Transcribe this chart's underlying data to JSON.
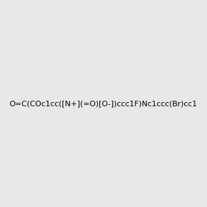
{
  "smiles": "O=C(COc1cc([N+](=O)[O-])ccc1F)Nc1ccc(Br)cc1",
  "image_size": 300,
  "background_color": "#e8e8e8",
  "title": ""
}
